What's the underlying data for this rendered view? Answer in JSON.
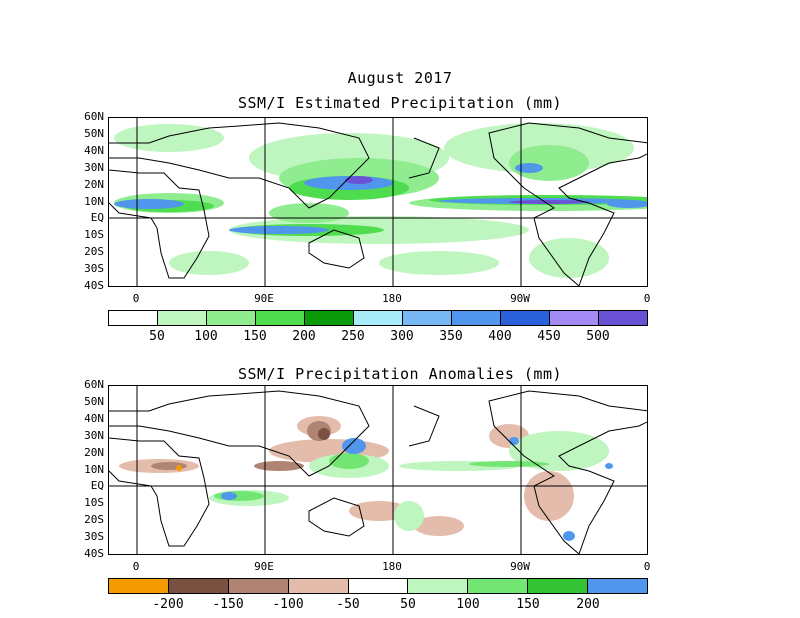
{
  "header": {
    "month_title": "August 2017"
  },
  "panels": [
    {
      "title": "SSM/I Estimated Precipitation (mm)",
      "lat_labels": [
        "60N",
        "50N",
        "40N",
        "30N",
        "20N",
        "10N",
        "EQ",
        "10S",
        "20S",
        "30S",
        "40S"
      ],
      "lon_labels": [
        "0",
        "90E",
        "180",
        "90W",
        "0"
      ],
      "colorbar": {
        "colors": [
          "#ffffff",
          "#bff5bf",
          "#8fec8f",
          "#4fdc4f",
          "#0a9a0a",
          "#a8ecfa",
          "#78b8f5",
          "#4f96ec",
          "#2b62dc",
          "#a48af5",
          "#6a52d5"
        ],
        "labels": [
          "50",
          "100",
          "150",
          "200",
          "250",
          "300",
          "350",
          "400",
          "450",
          "500"
        ]
      }
    },
    {
      "title": "SSM/I Precipitation Anomalies (mm)",
      "lat_labels": [
        "60N",
        "50N",
        "40N",
        "30N",
        "20N",
        "10N",
        "EQ",
        "10S",
        "20S",
        "30S",
        "40S"
      ],
      "lon_labels": [
        "0",
        "90E",
        "180",
        "90W",
        "0"
      ],
      "colorbar": {
        "colors": [
          "#f59a00",
          "#7a5040",
          "#b08472",
          "#e3bcac",
          "#ffffff",
          "#bff5bf",
          "#73e573",
          "#33c233",
          "#4f96ec"
        ],
        "labels": [
          "-200",
          "-150",
          "-100",
          "-50",
          "50",
          "100",
          "150",
          "200"
        ]
      }
    }
  ]
}
